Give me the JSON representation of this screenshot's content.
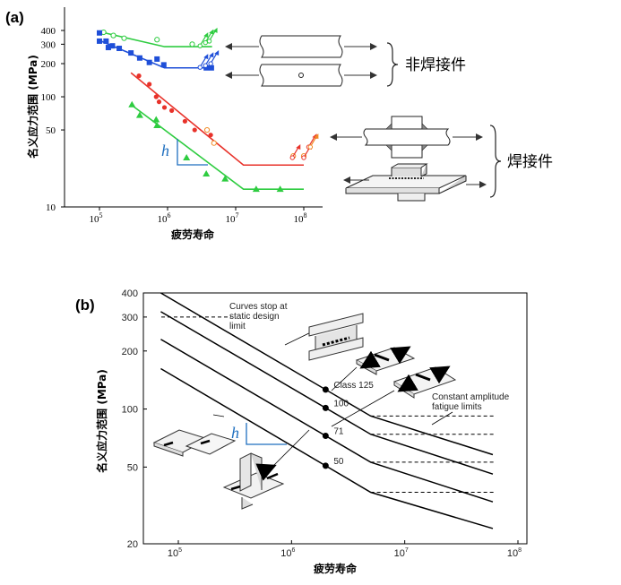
{
  "colors": {
    "green": "#2ecc40",
    "blue": "#1f4fd8",
    "red": "#e8322a",
    "orange": "#f08a24",
    "slope": "#1f6fbf"
  },
  "chart_data": [
    {
      "type": "line",
      "panel_label": "(a)",
      "xlabel": "疲劳寿命",
      "ylabel": "名义应力范围 (MPa)",
      "xscale": "log",
      "yscale": "log",
      "xlim": [
        50000,
        300000000
      ],
      "ylim": [
        10,
        500
      ],
      "x_ticks": [
        {
          "v": 100000,
          "m": "10",
          "e": "5"
        },
        {
          "v": 1000000,
          "m": "10",
          "e": "6"
        },
        {
          "v": 10000000,
          "m": "10",
          "e": "7"
        },
        {
          "v": 100000000,
          "m": "10",
          "e": "8"
        }
      ],
      "y_ticks": [
        {
          "v": 400,
          "label": "400"
        },
        {
          "v": 300,
          "label": "300"
        },
        {
          "v": 200,
          "label": "200"
        },
        {
          "v": 100,
          "label": "100"
        },
        {
          "v": 50,
          "label": "50"
        },
        {
          "v": 10,
          "label": "10"
        }
      ],
      "series": [
        {
          "color": "green",
          "marker": "circle-open",
          "line": [
            [
              100000,
              390
            ],
            [
              900000,
              285
            ],
            [
              4500000,
              285
            ]
          ],
          "points": [
            [
              115000,
              385
            ],
            [
              160000,
              360
            ],
            [
              230000,
              340
            ],
            [
              700000,
              330
            ],
            [
              2300000,
              300
            ]
          ],
          "runouts": [
            [
              3000000,
              290
            ],
            [
              3600000,
              310
            ],
            [
              4100000,
              320
            ]
          ]
        },
        {
          "color": "blue",
          "marker": "square",
          "line": [
            [
              100000,
              325
            ],
            [
              900000,
              183
            ],
            [
              4500000,
              183
            ]
          ],
          "points": [
            [
              100000,
              380
            ],
            [
              100000,
              320
            ],
            [
              125000,
              320
            ],
            [
              135000,
              280
            ],
            [
              155000,
              290
            ],
            [
              195000,
              275
            ],
            [
              290000,
              250
            ],
            [
              390000,
              225
            ],
            [
              540000,
              205
            ],
            [
              700000,
              220
            ],
            [
              880000,
              195
            ],
            [
              3700000,
              183
            ],
            [
              4400000,
              183
            ]
          ],
          "runouts": [
            [
              3000000,
              185
            ],
            [
              3600000,
              192
            ],
            [
              4300000,
              200
            ]
          ]
        },
        {
          "color": "red",
          "marker": "circle",
          "line": [
            [
              290000,
              165
            ],
            [
              13000000,
              24
            ],
            [
              100000000,
              24
            ]
          ],
          "points": [
            [
              380000,
              155
            ],
            [
              540000,
              130
            ],
            [
              680000,
              100
            ],
            [
              750000,
              90
            ],
            [
              900000,
              80
            ],
            [
              1150000,
              75
            ],
            [
              1800000,
              60
            ],
            [
              2500000,
              50
            ],
            [
              4300000,
              45
            ]
          ],
          "runouts": [
            [
              68000000,
              28
            ],
            [
              100000000,
              28
            ],
            [
              118000000,
              35
            ]
          ]
        },
        {
          "color": "orange",
          "marker": "circle-open",
          "line": [],
          "points": [
            [
              3800000,
              50
            ],
            [
              4800000,
              38
            ],
            [
              70000000,
              29
            ],
            [
              100000000,
              29
            ]
          ],
          "runouts": [
            [
              125000000,
              35
            ]
          ]
        },
        {
          "color": "green",
          "marker": "triangle",
          "line": [
            [
              290000,
              85
            ],
            [
              13000000,
              14.5
            ],
            [
              100000000,
              14.5
            ]
          ],
          "points": [
            [
              300000,
              85
            ],
            [
              390000,
              68
            ],
            [
              680000,
              62
            ],
            [
              700000,
              55
            ],
            [
              1900000,
              28
            ],
            [
              3700000,
              20
            ],
            [
              7000000,
              18
            ],
            [
              20000000,
              14.5
            ],
            [
              45000000,
              14.5
            ]
          ],
          "runouts": []
        }
      ],
      "slope_label": "h",
      "legend_groups": [
        "非焊接件",
        "焊接件"
      ]
    },
    {
      "type": "line",
      "panel_label": "(b)",
      "xlabel": "疲劳寿命",
      "ylabel": "名义应力范围 (MPa)",
      "xscale": "log",
      "yscale": "log",
      "xlim": [
        50000,
        100000000
      ],
      "ylim": [
        20,
        400
      ],
      "x_ticks": [
        {
          "v": 100000,
          "m": "10",
          "e": "5"
        },
        {
          "v": 1000000,
          "m": "10",
          "e": "6"
        },
        {
          "v": 10000000,
          "m": "10",
          "e": "7"
        },
        {
          "v": 100000000,
          "m": "10",
          "e": "8"
        }
      ],
      "y_ticks": [
        {
          "v": 400,
          "label": "400"
        },
        {
          "v": 300,
          "label": "300"
        },
        {
          "v": 200,
          "label": "200"
        },
        {
          "v": 100,
          "label": "100"
        },
        {
          "v": 50,
          "label": "50"
        },
        {
          "v": 20,
          "label": "20"
        }
      ],
      "series": [
        {
          "name": "Class 125",
          "dot_at": 2000000,
          "line": [
            [
              70000,
              400
            ],
            [
              5000000,
              92
            ],
            [
              60000000,
              58
            ]
          ],
          "cafl": 92
        },
        {
          "name": "100",
          "dot_at": 2000000,
          "line": [
            [
              70000,
              320
            ],
            [
              5000000,
              74
            ],
            [
              60000000,
              46
            ]
          ],
          "cafl": 74
        },
        {
          "name": "71",
          "dot_at": 2000000,
          "line": [
            [
              70000,
              230
            ],
            [
              5000000,
              53
            ],
            [
              60000000,
              33
            ]
          ],
          "cafl": 53
        },
        {
          "name": "50",
          "dot_at": 2000000,
          "line": [
            [
              70000,
              162
            ],
            [
              5000000,
              37
            ],
            [
              60000000,
              24
            ]
          ],
          "cafl": 37
        }
      ],
      "static_limit_y": 300,
      "annotations": {
        "static": "Curves stop at\nstatic design\nlimit",
        "cafl": "Constant amplitude\nfatigue limits"
      },
      "slope_label": "h"
    }
  ]
}
